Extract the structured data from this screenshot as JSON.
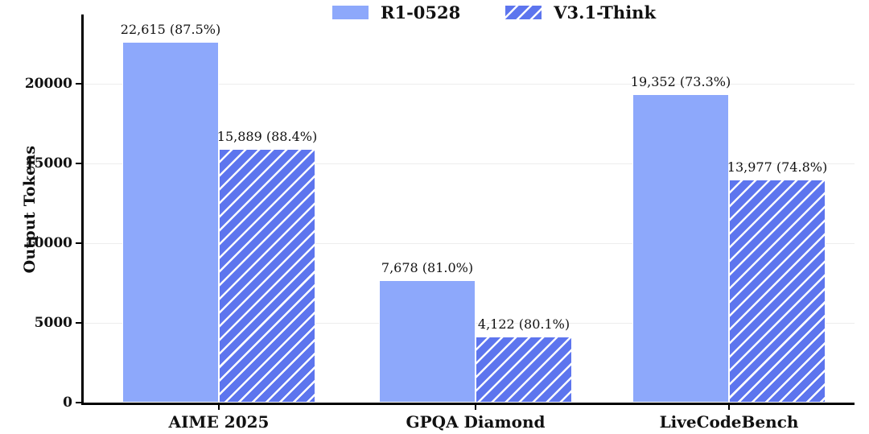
{
  "chart_data": {
    "type": "bar",
    "title": "",
    "xlabel": "",
    "ylabel": "Output Tokens",
    "categories": [
      "AIME 2025",
      "GPQA Diamond",
      "LiveCodeBench"
    ],
    "series": [
      {
        "name": "R1-0528",
        "style": "solid",
        "values": [
          22615,
          7678,
          19352
        ],
        "accuracy_pct": [
          87.5,
          81.0,
          73.3
        ],
        "labels": [
          "22,615 (87.5%)",
          "7,678 (81.0%)",
          "19,352 (73.3%)"
        ]
      },
      {
        "name": "V3.1-Think",
        "style": "hatched",
        "values": [
          15889,
          4122,
          13977
        ],
        "accuracy_pct": [
          88.4,
          80.1,
          74.8
        ],
        "labels": [
          "15,889 (88.4%)",
          "4,122 (80.1%)",
          "13,977 (74.8%)"
        ]
      }
    ],
    "yticks": [
      0,
      5000,
      10000,
      15000,
      20000
    ],
    "ytick_labels": [
      "0",
      "5000",
      "10000",
      "15000",
      "20000"
    ],
    "ylim": [
      0,
      24300
    ],
    "grid": true,
    "legend_position": "top-center",
    "colors": {
      "solid_bar": "#8da8fb",
      "hatch_fill": "#5d75ee",
      "hatch_line": "#ffffff",
      "grid": "#ededed",
      "axis": "#000000",
      "text": "#111111"
    }
  }
}
